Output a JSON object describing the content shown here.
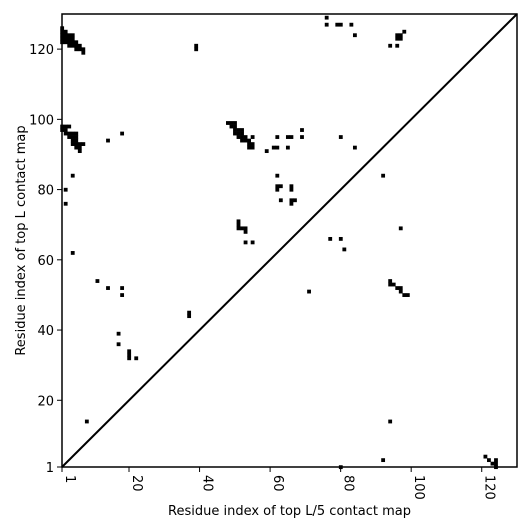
{
  "chart_data": {
    "type": "heatmap",
    "title": "",
    "xlabel": "Residue index of top L/5 contact map",
    "ylabel": "Residue index of top L contact map",
    "xlim": [
      1,
      130
    ],
    "ylim": [
      1,
      130
    ],
    "x_ticks": [
      "1",
      "20",
      "40",
      "60",
      "80",
      "100",
      "120"
    ],
    "y_ticks": [
      "1",
      "20",
      "40",
      "60",
      "80",
      "100",
      "120"
    ],
    "diagonal": true,
    "cell_color": "#000000",
    "upper_contacts": [
      [
        1,
        122
      ],
      [
        1,
        123
      ],
      [
        1,
        124
      ],
      [
        1,
        125
      ],
      [
        1,
        126
      ],
      [
        2,
        122
      ],
      [
        2,
        123
      ],
      [
        2,
        124
      ],
      [
        2,
        125
      ],
      [
        3,
        121
      ],
      [
        3,
        122
      ],
      [
        3,
        123
      ],
      [
        3,
        124
      ],
      [
        4,
        121
      ],
      [
        4,
        122
      ],
      [
        4,
        123
      ],
      [
        4,
        124
      ],
      [
        5,
        120
      ],
      [
        5,
        121
      ],
      [
        5,
        122
      ],
      [
        6,
        120
      ],
      [
        6,
        121
      ],
      [
        7,
        119
      ],
      [
        7,
        120
      ],
      [
        39,
        120
      ],
      [
        39,
        121
      ],
      [
        76,
        127
      ],
      [
        76,
        129
      ],
      [
        79,
        127
      ],
      [
        80,
        127
      ],
      [
        83,
        127
      ],
      [
        84,
        124
      ],
      [
        94,
        121
      ],
      [
        96,
        121
      ],
      [
        96,
        123
      ],
      [
        96,
        124
      ],
      [
        97,
        123
      ],
      [
        97,
        124
      ],
      [
        98,
        125
      ],
      [
        1,
        97
      ],
      [
        1,
        98
      ],
      [
        2,
        96
      ],
      [
        2,
        97
      ],
      [
        2,
        98
      ],
      [
        3,
        95
      ],
      [
        3,
        96
      ],
      [
        3,
        98
      ],
      [
        4,
        93
      ],
      [
        4,
        94
      ],
      [
        4,
        95
      ],
      [
        4,
        96
      ],
      [
        5,
        92
      ],
      [
        5,
        93
      ],
      [
        5,
        94
      ],
      [
        5,
        95
      ],
      [
        5,
        96
      ],
      [
        6,
        91
      ],
      [
        6,
        92
      ],
      [
        6,
        93
      ],
      [
        7,
        93
      ],
      [
        14,
        94
      ],
      [
        18,
        96
      ],
      [
        48,
        99
      ],
      [
        49,
        98
      ],
      [
        49,
        99
      ],
      [
        50,
        96
      ],
      [
        50,
        97
      ],
      [
        50,
        98
      ],
      [
        50,
        99
      ],
      [
        51,
        95
      ],
      [
        51,
        96
      ],
      [
        51,
        97
      ],
      [
        52,
        94
      ],
      [
        52,
        95
      ],
      [
        52,
        96
      ],
      [
        52,
        97
      ],
      [
        53,
        94
      ],
      [
        53,
        95
      ],
      [
        54,
        92
      ],
      [
        54,
        93
      ],
      [
        54,
        94
      ],
      [
        55,
        92
      ],
      [
        55,
        93
      ],
      [
        55,
        95
      ],
      [
        59,
        91
      ],
      [
        61,
        92
      ],
      [
        62,
        92
      ],
      [
        62,
        95
      ],
      [
        65,
        92
      ],
      [
        65,
        95
      ],
      [
        66,
        95
      ],
      [
        69,
        95
      ],
      [
        69,
        97
      ],
      [
        80,
        95
      ],
      [
        84,
        92
      ],
      [
        2,
        80
      ],
      [
        2,
        76
      ],
      [
        4,
        84
      ],
      [
        62,
        84
      ],
      [
        92,
        84
      ],
      [
        62,
        80
      ],
      [
        62,
        81
      ],
      [
        63,
        81
      ],
      [
        63,
        77
      ],
      [
        66,
        80
      ],
      [
        66,
        81
      ],
      [
        66,
        76
      ],
      [
        66,
        77
      ],
      [
        67,
        77
      ],
      [
        51,
        69
      ],
      [
        51,
        70
      ],
      [
        51,
        71
      ],
      [
        52,
        69
      ],
      [
        53,
        68
      ],
      [
        53,
        69
      ],
      [
        53,
        65
      ],
      [
        55,
        65
      ],
      [
        97,
        69
      ],
      [
        77,
        66
      ],
      [
        80,
        66
      ],
      [
        81,
        63
      ],
      [
        4,
        62
      ],
      [
        11,
        54
      ],
      [
        14,
        52
      ],
      [
        18,
        50
      ],
      [
        18,
        52
      ],
      [
        94,
        53
      ],
      [
        94,
        54
      ],
      [
        95,
        53
      ],
      [
        96,
        52
      ],
      [
        97,
        51
      ],
      [
        97,
        52
      ],
      [
        98,
        50
      ],
      [
        99,
        50
      ],
      [
        71,
        51
      ],
      [
        37,
        44
      ],
      [
        37,
        45
      ],
      [
        17,
        36
      ],
      [
        17,
        39
      ],
      [
        20,
        32
      ],
      [
        20,
        33
      ],
      [
        20,
        34
      ],
      [
        22,
        32
      ]
    ],
    "lower_contacts": [
      [
        8,
        14
      ],
      [
        94,
        14
      ],
      [
        92,
        3
      ],
      [
        80,
        1
      ],
      [
        121,
        4
      ],
      [
        122,
        3
      ],
      [
        123,
        2
      ],
      [
        124,
        1
      ],
      [
        124,
        2
      ],
      [
        124,
        3
      ]
    ]
  }
}
